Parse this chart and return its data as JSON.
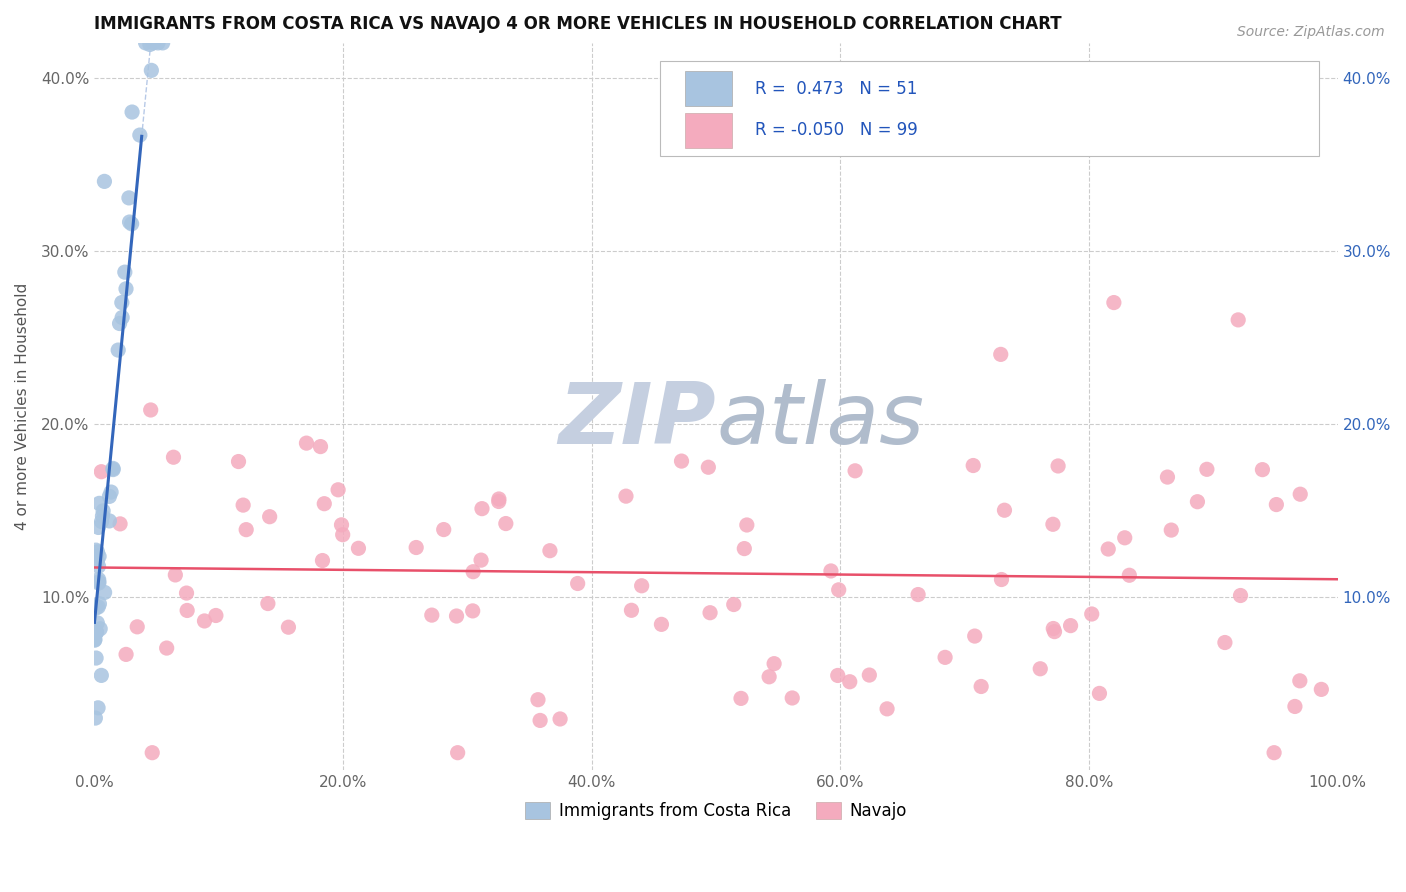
{
  "title": "IMMIGRANTS FROM COSTA RICA VS NAVAJO 4 OR MORE VEHICLES IN HOUSEHOLD CORRELATION CHART",
  "source": "Source: ZipAtlas.com",
  "ylabel": "4 or more Vehicles in Household",
  "legend_labels": [
    "Immigrants from Costa Rica",
    "Navajo"
  ],
  "r_blue": 0.473,
  "n_blue": 51,
  "r_pink": -0.05,
  "n_pink": 99,
  "xlim": [
    0.0,
    1.0
  ],
  "ylim": [
    0.0,
    0.42
  ],
  "xticks": [
    0.0,
    0.2,
    0.4,
    0.6,
    0.8,
    1.0
  ],
  "yticks": [
    0.0,
    0.1,
    0.2,
    0.3,
    0.4
  ],
  "xticklabels": [
    "0.0%",
    "20.0%",
    "40.0%",
    "60.0%",
    "80.0%",
    "100.0%"
  ],
  "yticklabels": [
    "",
    "10.0%",
    "20.0%",
    "30.0%",
    "40.0%"
  ],
  "background_color": "#ffffff",
  "grid_color": "#cccccc",
  "blue_scatter_color": "#a8c4e0",
  "pink_scatter_color": "#f4abbe",
  "blue_line_color": "#3366bb",
  "pink_line_color": "#e8506a",
  "watermark_color_zip": "#c5cfe0",
  "watermark_color_atlas": "#b0bccc"
}
